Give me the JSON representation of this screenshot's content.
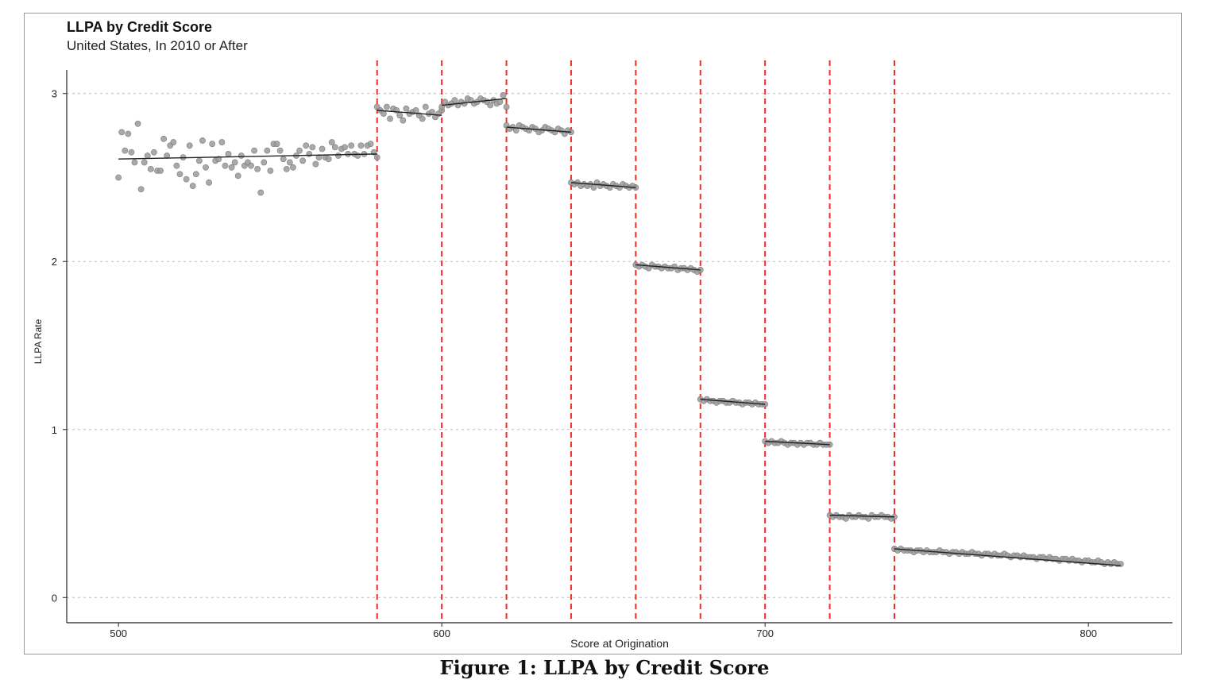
{
  "chart_data": {
    "type": "scatter",
    "title": "LLPA by Credit Score",
    "subtitle": "United States, In 2010 or After",
    "xlabel": "Score at Origination",
    "ylabel": "LLPA Rate",
    "xlim": [
      484,
      826
    ],
    "ylim": [
      -0.15,
      3.15
    ],
    "xticks": [
      500,
      600,
      700,
      800
    ],
    "yticks": [
      0,
      1,
      2,
      3
    ],
    "grid": "horizontal dotted",
    "cutoffs": [
      580,
      600,
      620,
      640,
      660,
      680,
      700,
      720,
      740
    ],
    "cutoff_color": "#e8312a",
    "point_color": "#9a9a9a",
    "fit_color": "#222222",
    "segments": [
      {
        "x": [
          500,
          580
        ],
        "fit": [
          2.61,
          2.64
        ],
        "points": [
          2.5,
          2.77,
          2.66,
          2.76,
          2.65,
          2.59,
          2.82,
          2.43,
          2.59,
          2.63,
          2.55,
          2.65,
          2.54,
          2.54,
          2.73,
          2.63,
          2.69,
          2.71,
          2.57,
          2.52,
          2.62,
          2.49,
          2.69,
          2.45,
          2.52,
          2.6,
          2.72,
          2.56,
          2.47,
          2.7,
          2.6,
          2.61,
          2.71,
          2.57,
          2.64,
          2.56,
          2.59,
          2.51,
          2.63,
          2.57,
          2.59,
          2.57,
          2.66,
          2.55,
          2.41,
          2.59,
          2.66,
          2.54,
          2.7,
          2.7,
          2.66,
          2.61,
          2.55,
          2.59,
          2.56,
          2.63,
          2.66,
          2.6,
          2.69,
          2.64,
          2.68,
          2.58,
          2.62,
          2.67,
          2.62,
          2.61,
          2.71,
          2.68,
          2.63,
          2.67,
          2.68,
          2.64,
          2.69,
          2.64,
          2.63,
          2.69,
          2.64,
          2.69,
          2.7,
          2.65,
          2.62
        ]
      },
      {
        "x": [
          580,
          600
        ],
        "fit": [
          2.9,
          2.87
        ],
        "points": [
          2.92,
          2.9,
          2.88,
          2.92,
          2.85,
          2.91,
          2.9,
          2.87,
          2.84,
          2.91,
          2.88,
          2.89,
          2.9,
          2.87,
          2.85,
          2.92,
          2.88,
          2.89,
          2.86,
          2.88,
          2.9
        ]
      },
      {
        "x": [
          600,
          620
        ],
        "fit": [
          2.93,
          2.97
        ],
        "points": [
          2.92,
          2.95,
          2.93,
          2.94,
          2.96,
          2.93,
          2.95,
          2.94,
          2.97,
          2.96,
          2.94,
          2.95,
          2.97,
          2.96,
          2.95,
          2.93,
          2.96,
          2.94,
          2.95,
          2.99,
          2.92
        ]
      },
      {
        "x": [
          620,
          640
        ],
        "fit": [
          2.8,
          2.77
        ],
        "points": [
          2.81,
          2.79,
          2.8,
          2.78,
          2.81,
          2.8,
          2.79,
          2.78,
          2.8,
          2.79,
          2.77,
          2.78,
          2.8,
          2.79,
          2.78,
          2.77,
          2.79,
          2.78,
          2.76,
          2.78,
          2.77
        ]
      },
      {
        "x": [
          640,
          660
        ],
        "fit": [
          2.47,
          2.44
        ],
        "points": [
          2.47,
          2.46,
          2.47,
          2.45,
          2.46,
          2.45,
          2.46,
          2.44,
          2.47,
          2.45,
          2.46,
          2.45,
          2.44,
          2.46,
          2.45,
          2.44,
          2.46,
          2.45,
          2.44,
          2.45,
          2.44
        ]
      },
      {
        "x": [
          660,
          680
        ],
        "fit": [
          1.98,
          1.95
        ],
        "points": [
          1.98,
          1.97,
          1.98,
          1.97,
          1.96,
          1.98,
          1.97,
          1.97,
          1.96,
          1.97,
          1.96,
          1.96,
          1.97,
          1.95,
          1.96,
          1.96,
          1.95,
          1.96,
          1.95,
          1.94,
          1.95
        ]
      },
      {
        "x": [
          680,
          700
        ],
        "fit": [
          1.18,
          1.15
        ],
        "points": [
          1.18,
          1.17,
          1.18,
          1.17,
          1.17,
          1.16,
          1.17,
          1.17,
          1.16,
          1.16,
          1.17,
          1.16,
          1.16,
          1.15,
          1.16,
          1.16,
          1.15,
          1.16,
          1.15,
          1.15,
          1.15
        ]
      },
      {
        "x": [
          700,
          720
        ],
        "fit": [
          0.93,
          0.91
        ],
        "points": [
          0.93,
          0.92,
          0.93,
          0.92,
          0.92,
          0.93,
          0.92,
          0.91,
          0.92,
          0.92,
          0.91,
          0.92,
          0.91,
          0.92,
          0.92,
          0.91,
          0.91,
          0.92,
          0.91,
          0.91,
          0.91
        ]
      },
      {
        "x": [
          720,
          740
        ],
        "fit": [
          0.49,
          0.48
        ],
        "points": [
          0.49,
          0.48,
          0.49,
          0.48,
          0.48,
          0.47,
          0.49,
          0.48,
          0.48,
          0.49,
          0.48,
          0.48,
          0.47,
          0.49,
          0.48,
          0.48,
          0.49,
          0.48,
          0.48,
          0.47,
          0.48
        ]
      },
      {
        "x": [
          740,
          810
        ],
        "fit": [
          0.29,
          0.19
        ],
        "points": [
          0.29,
          0.28,
          0.29,
          0.28,
          0.28,
          0.28,
          0.27,
          0.28,
          0.28,
          0.27,
          0.28,
          0.27,
          0.27,
          0.27,
          0.28,
          0.27,
          0.27,
          0.26,
          0.27,
          0.27,
          0.26,
          0.27,
          0.26,
          0.26,
          0.27,
          0.26,
          0.26,
          0.25,
          0.26,
          0.26,
          0.25,
          0.26,
          0.25,
          0.25,
          0.26,
          0.25,
          0.24,
          0.25,
          0.25,
          0.24,
          0.25,
          0.24,
          0.24,
          0.24,
          0.23,
          0.24,
          0.24,
          0.23,
          0.24,
          0.23,
          0.23,
          0.22,
          0.23,
          0.23,
          0.22,
          0.23,
          0.22,
          0.22,
          0.21,
          0.22,
          0.22,
          0.21,
          0.21,
          0.22,
          0.21,
          0.2,
          0.21,
          0.2,
          0.21,
          0.2,
          0.2
        ]
      }
    ]
  },
  "caption": "Figure 1: LLPA by Credit Score"
}
